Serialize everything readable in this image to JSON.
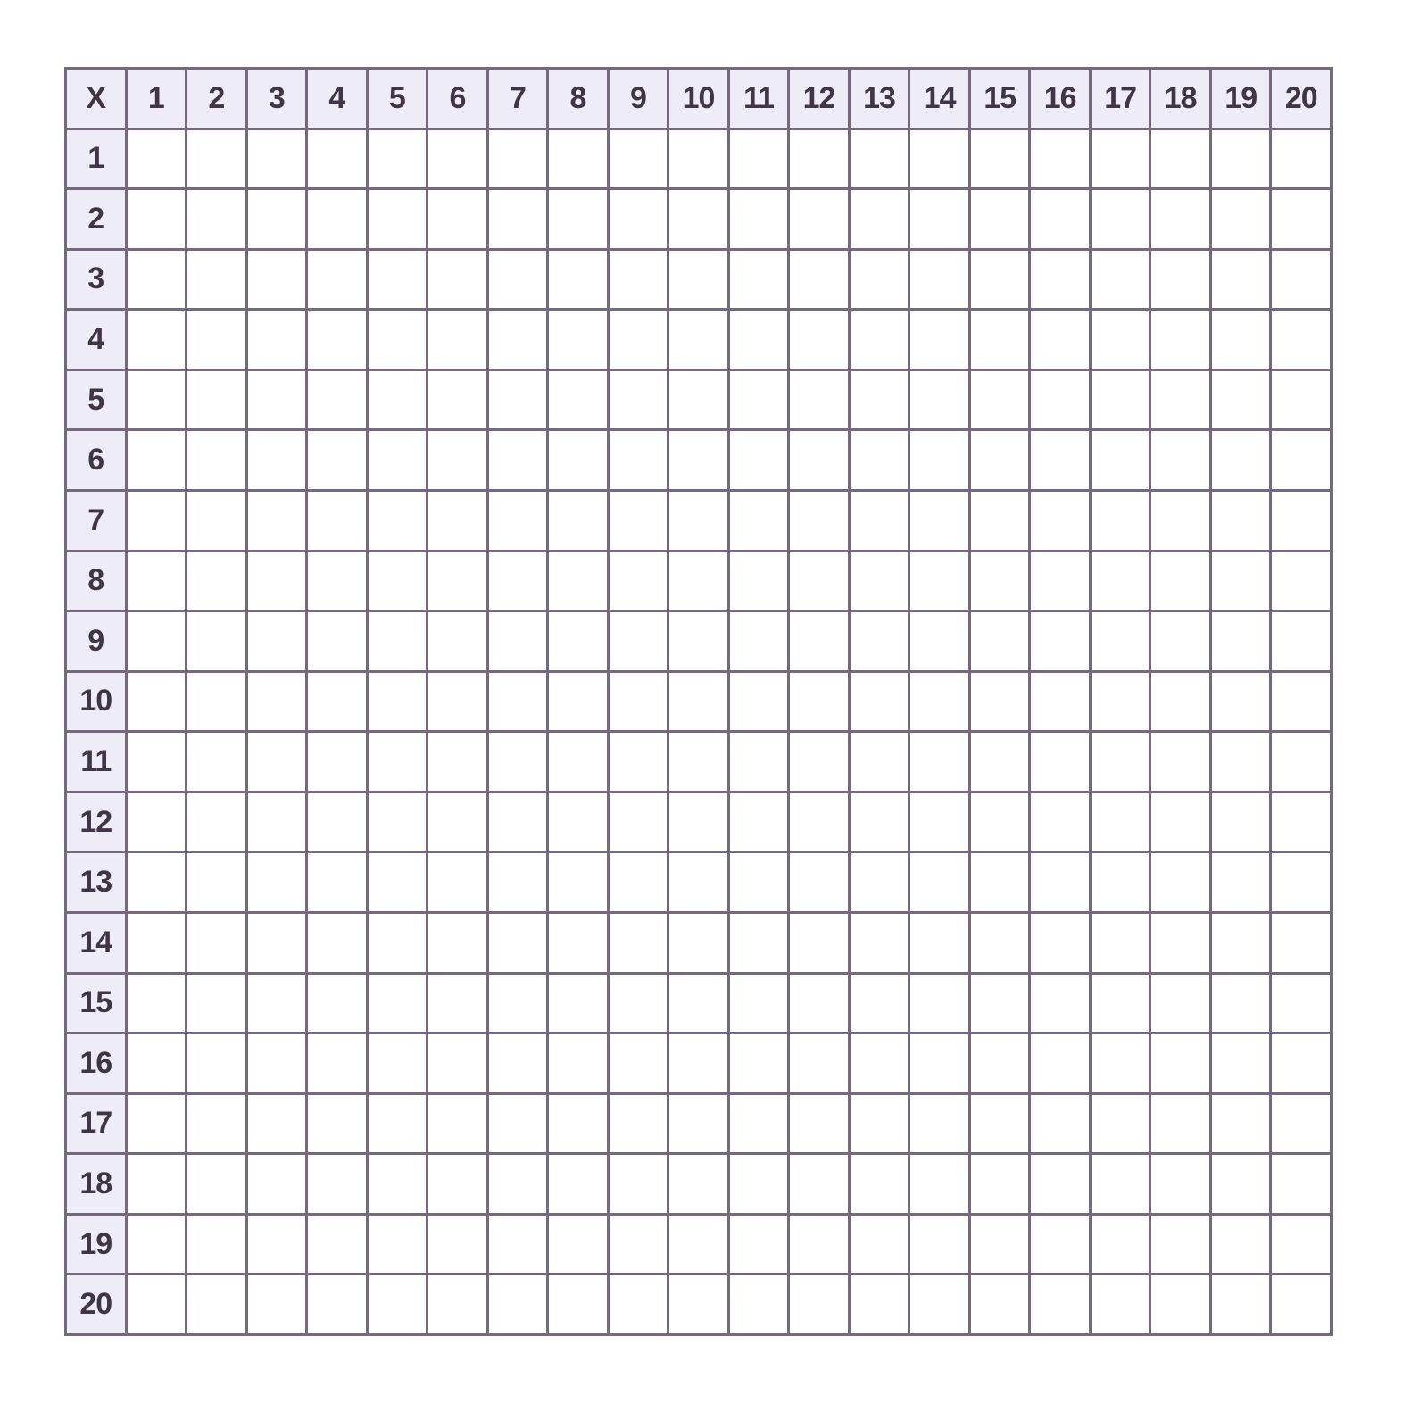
{
  "table": {
    "corner_label": "X",
    "column_headers": [
      "1",
      "2",
      "3",
      "4",
      "5",
      "6",
      "7",
      "8",
      "9",
      "10",
      "11",
      "12",
      "13",
      "14",
      "15",
      "16",
      "17",
      "18",
      "19",
      "20"
    ],
    "row_headers": [
      "1",
      "2",
      "3",
      "4",
      "5",
      "6",
      "7",
      "8",
      "9",
      "10",
      "11",
      "12",
      "13",
      "14",
      "15",
      "16",
      "17",
      "18",
      "19",
      "20"
    ],
    "header_background": "#eeedf7",
    "grid_line_color": "#756a7d",
    "text_color": "#3f3547"
  }
}
